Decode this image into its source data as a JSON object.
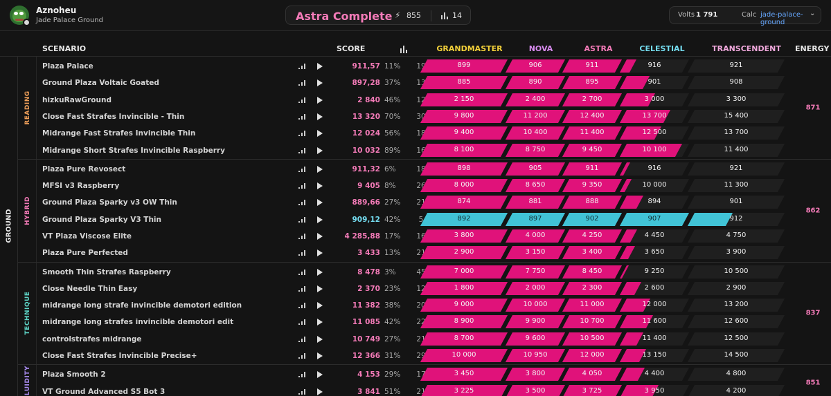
{
  "user": {
    "name": "Aznoheu",
    "subtitle": "Jade Palace Ground"
  },
  "rank": {
    "title": "Astra Complete",
    "energy": "855",
    "count": "14"
  },
  "calc": {
    "volts_label": "Volts",
    "volts_value": "1 791",
    "calc_label": "Calc",
    "selected": "jade-palace-ground"
  },
  "columns": {
    "scenario": "SCENARIO",
    "score": "SCORE",
    "energy": "ENERGY"
  },
  "tiers": [
    {
      "name": "GRANDMASTER",
      "color": "#f2d03a"
    },
    {
      "name": "NOVA",
      "color": "#d98cf0"
    },
    {
      "name": "ASTRA",
      "color": "#f47bb8"
    },
    {
      "name": "CELESTIAL",
      "color": "#74dcf0"
    },
    {
      "name": "TRANSCENDENT",
      "color": "#f0a8dc"
    }
  ],
  "category": "GROUND",
  "groups": [
    {
      "name": "READING",
      "color": "#f0a05a",
      "energy": "871",
      "rows": [
        {
          "name": "Plaza Palace",
          "score": "911,57",
          "pct": "11%",
          "plays": "19",
          "thresholds": [
            "899",
            "906",
            "911",
            "916",
            "921"
          ],
          "fill": [
            1,
            1,
            1,
            0.15,
            0
          ]
        },
        {
          "name": "Ground Plaza Voltaic Goated",
          "score": "897,28",
          "pct": "37%",
          "plays": "13",
          "thresholds": [
            "885",
            "890",
            "895",
            "901",
            "908"
          ],
          "fill": [
            1,
            1,
            1,
            0.37,
            0
          ]
        },
        {
          "name": "hizkuRawGround",
          "score": "2 840",
          "pct": "46%",
          "plays": "12",
          "thresholds": [
            "2 150",
            "2 400",
            "2 700",
            "3 000",
            "3 300"
          ],
          "fill": [
            1,
            1,
            1,
            0.46,
            0
          ]
        },
        {
          "name": "Close Fast Strafes Invincible - Thin",
          "score": "13 320",
          "pct": "70%",
          "plays": "30",
          "thresholds": [
            "9 800",
            "11 200",
            "12 400",
            "13 700",
            "15 400"
          ],
          "fill": [
            1,
            1,
            1,
            0.7,
            0
          ]
        },
        {
          "name": "Midrange Fast Strafes Invincible Thin",
          "score": "12 024",
          "pct": "56%",
          "plays": "18",
          "thresholds": [
            "9 400",
            "10 400",
            "11 400",
            "12 500",
            "13 700"
          ],
          "fill": [
            1,
            1,
            1,
            0.56,
            0
          ]
        },
        {
          "name": "Midrange Short Strafes Invincible Raspberry",
          "score": "10 032",
          "pct": "89%",
          "plays": "16",
          "thresholds": [
            "8 100",
            "8 750",
            "9 450",
            "10 100",
            "11 400"
          ],
          "fill": [
            1,
            1,
            1,
            0.89,
            0
          ]
        }
      ]
    },
    {
      "name": "HYBRID",
      "color": "#f47bb8",
      "energy": "862",
      "rows": [
        {
          "name": "Plaza Pure Revosect",
          "score": "911,32",
          "pct": "6%",
          "plays": "18",
          "thresholds": [
            "898",
            "905",
            "911",
            "916",
            "921"
          ],
          "fill": [
            1,
            1,
            1,
            0.06,
            0
          ]
        },
        {
          "name": "MFSI v3 Raspberry",
          "score": "9 405",
          "pct": "8%",
          "plays": "26",
          "thresholds": [
            "8 000",
            "8 650",
            "9 350",
            "10 000",
            "11 300"
          ],
          "fill": [
            1,
            1,
            1,
            0.08,
            0
          ]
        },
        {
          "name": "Ground Plaza Sparky v3 OW Thin",
          "score": "889,66",
          "pct": "27%",
          "plays": "21",
          "thresholds": [
            "874",
            "881",
            "888",
            "894",
            "901"
          ],
          "fill": [
            1,
            1,
            1,
            0.27,
            0
          ]
        },
        {
          "name": "Ground Plaza Sparky V3 Thin",
          "score": "909,12",
          "pct": "42%",
          "plays": "5",
          "thresholds": [
            "892",
            "897",
            "902",
            "907",
            "912"
          ],
          "fill": [
            1,
            1,
            1,
            1,
            0.42
          ],
          "cyan": true
        },
        {
          "name": "VT Plaza Viscose Elite",
          "score": "4 285,88",
          "pct": "17%",
          "plays": "16",
          "thresholds": [
            "3 800",
            "4 000",
            "4 250",
            "4 450",
            "4 750"
          ],
          "fill": [
            1,
            1,
            1,
            0.17,
            0
          ]
        },
        {
          "name": "Plaza Pure Perfected",
          "score": "3 433",
          "pct": "13%",
          "plays": "21",
          "thresholds": [
            "2 900",
            "3 150",
            "3 400",
            "3 650",
            "3 900"
          ],
          "fill": [
            1,
            1,
            1,
            0.13,
            0
          ]
        }
      ]
    },
    {
      "name": "TECHNIQUE",
      "color": "#5ed6c8",
      "energy": "837",
      "rows": [
        {
          "name": "Smooth Thin Strafes Raspberry",
          "score": "8 478",
          "pct": "3%",
          "plays": "45",
          "thresholds": [
            "7 000",
            "7 750",
            "8 450",
            "9 250",
            "10 500"
          ],
          "fill": [
            1,
            1,
            1,
            0.03,
            0
          ]
        },
        {
          "name": "Close Needle Thin Easy",
          "score": "2 370",
          "pct": "23%",
          "plays": "12",
          "thresholds": [
            "1 800",
            "2 000",
            "2 300",
            "2 600",
            "2 900"
          ],
          "fill": [
            1,
            1,
            1,
            0.23,
            0
          ]
        },
        {
          "name": "midrange long strafe invincible demotori edition",
          "score": "11 382",
          "pct": "38%",
          "plays": "20",
          "thresholds": [
            "9 000",
            "10 000",
            "11 000",
            "12 000",
            "13 200"
          ],
          "fill": [
            1,
            1,
            1,
            0.38,
            0
          ]
        },
        {
          "name": "midrange long strafes invincible demotori edit",
          "score": "11 085",
          "pct": "42%",
          "plays": "22",
          "thresholds": [
            "8 900",
            "9 900",
            "10 700",
            "11 600",
            "12 600"
          ],
          "fill": [
            1,
            1,
            1,
            0.42,
            0
          ]
        },
        {
          "name": "controlstrafes midrange",
          "score": "10 749",
          "pct": "27%",
          "plays": "21",
          "thresholds": [
            "8 700",
            "9 600",
            "10 500",
            "11 400",
            "12 500"
          ],
          "fill": [
            1,
            1,
            1,
            0.27,
            0
          ]
        },
        {
          "name": "Close Fast Strafes Invincible Precise+",
          "score": "12 366",
          "pct": "31%",
          "plays": "29",
          "thresholds": [
            "10 000",
            "10 950",
            "12 000",
            "13 150",
            "14 500"
          ],
          "fill": [
            1,
            1,
            1,
            0.31,
            0
          ]
        }
      ]
    },
    {
      "name": "FLUIDITY",
      "color": "#a98bf0",
      "energy": "851",
      "rows": [
        {
          "name": "Plaza Smooth 2",
          "score": "4 153",
          "pct": "29%",
          "plays": "17",
          "thresholds": [
            "3 450",
            "3 800",
            "4 050",
            "4 400",
            "4 800"
          ],
          "fill": [
            1,
            1,
            1,
            0.29,
            0
          ]
        },
        {
          "name": "VT Ground Advanced S5 Bot 3",
          "score": "3 841",
          "pct": "51%",
          "plays": "21",
          "thresholds": [
            "3 225",
            "3 500",
            "3 725",
            "3 950",
            "4 200"
          ],
          "fill": [
            1,
            1,
            1,
            0.51,
            0
          ]
        }
      ]
    }
  ]
}
